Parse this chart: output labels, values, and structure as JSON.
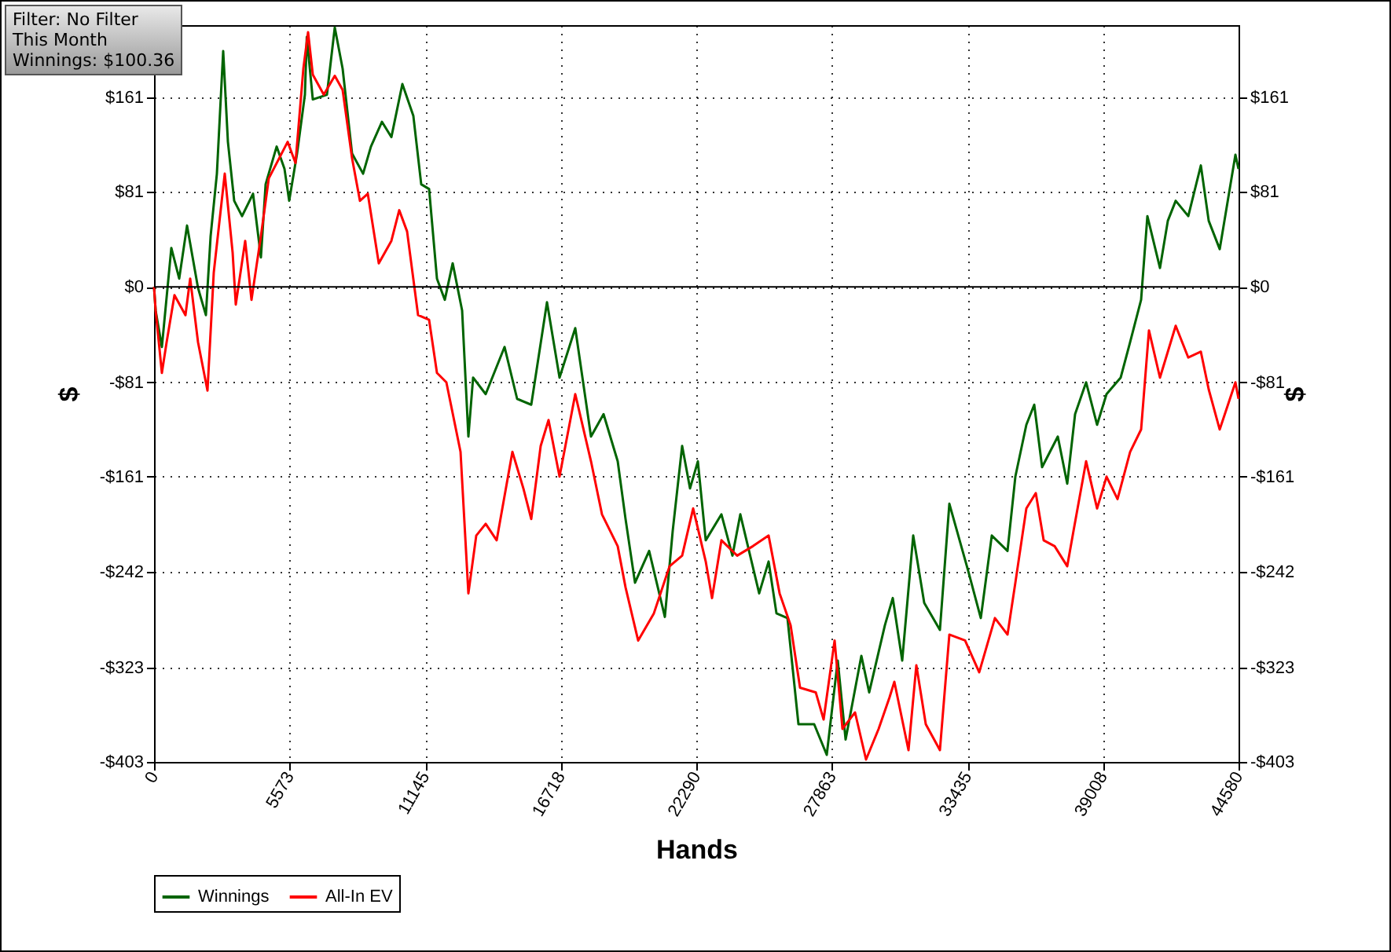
{
  "chart_data": {
    "type": "line",
    "xlabel": "Hands",
    "ylabel": "$",
    "y2label": "$",
    "annotations": [
      "Filter: No Filter",
      "This Month",
      "Winnings: $100.36"
    ],
    "xlim": [
      0,
      44580
    ],
    "xticks": [
      0,
      5573,
      11145,
      16718,
      22290,
      27863,
      33435,
      39008,
      44580
    ],
    "ylim": [
      -403,
      222
    ],
    "yticks": [
      {
        "value": -403,
        "label": "-$403"
      },
      {
        "value": -323,
        "label": "-$323"
      },
      {
        "value": -242,
        "label": "-$242"
      },
      {
        "value": -161,
        "label": "-$161"
      },
      {
        "value": -81,
        "label": "-$81"
      },
      {
        "value": 0,
        "label": "$0"
      },
      {
        "value": 81,
        "label": "$81"
      },
      {
        "value": 161,
        "label": "$161"
      }
    ],
    "y2lim": [
      -403,
      222
    ],
    "y2ticks": [
      {
        "value": -403,
        "label": "-$403"
      },
      {
        "value": -323,
        "label": "-$323"
      },
      {
        "value": -242,
        "label": "-$242"
      },
      {
        "value": -161,
        "label": "-$161"
      },
      {
        "value": -81,
        "label": "-$81"
      },
      {
        "value": 0,
        "label": "$0"
      },
      {
        "value": 81,
        "label": "$81"
      },
      {
        "value": 161,
        "label": "$161"
      }
    ],
    "ref_lines": [
      {
        "axis": "y",
        "value": 0,
        "color": "#000000"
      }
    ],
    "grid": true,
    "legend": "bottom left",
    "line_style": "solid",
    "series": [
      {
        "name": "Winnings",
        "color": "#006400",
        "x": [
          0,
          65,
          323,
          711,
          1034,
          1357,
          1809,
          2132,
          2326,
          2584,
          2843,
          3037,
          3295,
          3618,
          4070,
          4393,
          4587,
          5040,
          5363,
          5556,
          5879,
          6202,
          6280,
          6526,
          7107,
          7430,
          7753,
          8141,
          8593,
          8916,
          9368,
          9756,
          10208,
          10660,
          10983,
          11307,
          11630,
          11953,
          12276,
          12664,
          12922,
          13116,
          13633,
          14408,
          14925,
          15506,
          16153,
          16669,
          17315,
          17962,
          18478,
          19060,
          19383,
          19771,
          20352,
          20998,
          21321,
          21709,
          22032,
          22355,
          22678,
          23324,
          23776,
          24100,
          24875,
          25263,
          25586,
          26038,
          26490,
          27136,
          27653,
          28105,
          28428,
          29075,
          29398,
          30044,
          30367,
          30755,
          31207,
          31659,
          32305,
          32693,
          33468,
          33985,
          34437,
          35083,
          35406,
          35858,
          36182,
          36505,
          37151,
          37538,
          37861,
          38314,
          38766,
          39154,
          39735,
          40123,
          40575,
          40833,
          41350,
          41673,
          41997,
          42514,
          43031,
          43354,
          43806,
          44452,
          44580
        ],
        "values": [
          0,
          -20,
          -51,
          33,
          7,
          52,
          -1,
          -24,
          43,
          96,
          200,
          123,
          73,
          60,
          79,
          25,
          87,
          119,
          100,
          73,
          113,
          163,
          212,
          159,
          163,
          220,
          185,
          113,
          96,
          119,
          140,
          127,
          172,
          145,
          87,
          83,
          7,
          -11,
          20,
          -20,
          -127,
          -77,
          -91,
          -51,
          -95,
          -100,
          -13,
          -77,
          -35,
          -127,
          -108,
          -148,
          -197,
          -251,
          -224,
          -280,
          -207,
          -135,
          -171,
          -148,
          -215,
          -193,
          -228,
          -193,
          -260,
          -233,
          -277,
          -281,
          -371,
          -371,
          -397,
          -317,
          -384,
          -313,
          -344,
          -287,
          -264,
          -317,
          -211,
          -268,
          -291,
          -184,
          -241,
          -281,
          -211,
          -224,
          -161,
          -117,
          -100,
          -153,
          -127,
          -167,
          -108,
          -81,
          -117,
          -91,
          -77,
          -47,
          -11,
          60,
          16,
          56,
          73,
          60,
          103,
          56,
          32,
          112,
          100
        ]
      },
      {
        "name": "All-In EV",
        "color": "#ff0000",
        "x": [
          0,
          65,
          323,
          517,
          840,
          1292,
          1486,
          1809,
          2197,
          2455,
          2907,
          3231,
          3360,
          3747,
          4006,
          4393,
          4717,
          5492,
          5815,
          6138,
          6332,
          6526,
          6978,
          7430,
          7753,
          8141,
          8464,
          8787,
          9239,
          9756,
          10079,
          10402,
          10854,
          11307,
          11630,
          12017,
          12599,
          12922,
          13245,
          13633,
          14085,
          14731,
          15183,
          15506,
          15894,
          16217,
          16669,
          17315,
          17962,
          18414,
          19060,
          19383,
          19900,
          20546,
          21192,
          21709,
          22161,
          22678,
          22937,
          23324,
          23970,
          24616,
          25263,
          25715,
          26167,
          26555,
          27201,
          27524,
          27976,
          28299,
          28816,
          29268,
          29785,
          30237,
          30432,
          31013,
          31336,
          31724,
          32305,
          32693,
          33339,
          33920,
          34566,
          35083,
          35406,
          35858,
          36246,
          36569,
          37021,
          37538,
          37797,
          38314,
          38766,
          39154,
          39606,
          40123,
          40575,
          40898,
          41350,
          41997,
          42514,
          43031,
          43354,
          43806,
          44452,
          44580
        ],
        "values": [
          0,
          -20,
          -73,
          -47,
          -7,
          -24,
          7,
          -47,
          -88,
          12,
          96,
          29,
          -15,
          39,
          -11,
          43,
          92,
          123,
          105,
          185,
          216,
          180,
          163,
          179,
          167,
          109,
          73,
          79,
          20,
          39,
          65,
          47,
          -24,
          -28,
          -73,
          -81,
          -140,
          -260,
          -211,
          -201,
          -215,
          -140,
          -171,
          -197,
          -135,
          -113,
          -161,
          -91,
          -148,
          -193,
          -220,
          -255,
          -300,
          -277,
          -237,
          -228,
          -188,
          -233,
          -264,
          -215,
          -228,
          -220,
          -211,
          -260,
          -287,
          -340,
          -344,
          -367,
          -300,
          -375,
          -361,
          -401,
          -375,
          -348,
          -335,
          -393,
          -321,
          -371,
          -393,
          -295,
          -300,
          -327,
          -281,
          -295,
          -251,
          -188,
          -175,
          -215,
          -220,
          -237,
          -207,
          -148,
          -188,
          -161,
          -180,
          -140,
          -121,
          -37,
          -77,
          -33,
          -60,
          -55,
          -87,
          -121,
          -81,
          -95
        ]
      }
    ]
  }
}
